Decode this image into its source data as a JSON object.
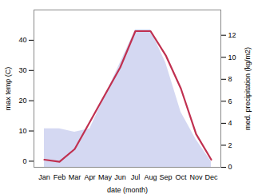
{
  "chart_data": {
    "type": "line",
    "categories": [
      "Jan",
      "Feb",
      "Mar",
      "Apr",
      "May",
      "Jun",
      "Jul",
      "Aug",
      "Sep",
      "Oct",
      "Nov",
      "Dec"
    ],
    "series": [
      {
        "type": "area",
        "axis": "y2",
        "color": "#b0b8e8",
        "values": [
          3.5,
          3.5,
          3.2,
          3.5,
          6.5,
          9.5,
          12.5,
          12.5,
          9.5,
          5.0,
          2.5,
          0.5
        ]
      },
      {
        "type": "line",
        "color": "#c03050",
        "values": [
          0.5,
          -0.2,
          4,
          13,
          22,
          31,
          43,
          43,
          35,
          24,
          9,
          0.5
        ]
      }
    ],
    "xlabel": "date (month)",
    "ylabel": "max temp (C)",
    "y2label": "med. precipitation (kg/m2)",
    "ylim": [
      -2,
      50
    ],
    "yticks": [
      0,
      10,
      20,
      30,
      40
    ],
    "y2lim": [
      0,
      14.3
    ],
    "y2ticks": [
      0,
      2,
      4,
      6,
      8,
      10,
      12
    ]
  }
}
